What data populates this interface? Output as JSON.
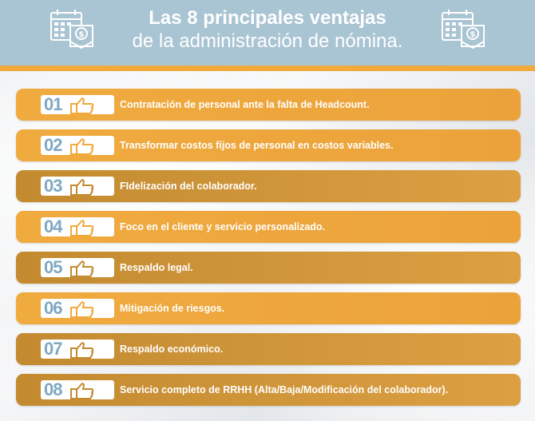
{
  "header": {
    "title_line1": "Las 8 principales ventajas",
    "title_line2": "de la administración de nómina."
  },
  "icons": {
    "header_left": "calendar-money-icon",
    "header_right": "calendar-money-icon",
    "row_icon": "thumbs-up-icon"
  },
  "colors": {
    "header_bg": "#a9c4d3",
    "accent": "#f0a93a",
    "row_light": "#f0ab3f",
    "row_dark": "#c38a30",
    "number": "#7ea8c4"
  },
  "items": [
    {
      "num": "01",
      "label": "Contratación de personal ante la falta de Headcount."
    },
    {
      "num": "02",
      "label": "Transformar costos fijos de personal en costos variables."
    },
    {
      "num": "03",
      "label": "FIdelización del colaborador."
    },
    {
      "num": "04",
      "label": "Foco en el cliente y servicio personalizado."
    },
    {
      "num": "05",
      "label": "Respaldo legal."
    },
    {
      "num": "06",
      "label": "Mitigación de riesgos."
    },
    {
      "num": "07",
      "label": "Respaldo económico."
    },
    {
      "num": "08",
      "label": "Servicio completo de RRHH (Alta/Baja/Modificación del colaborador)."
    }
  ]
}
